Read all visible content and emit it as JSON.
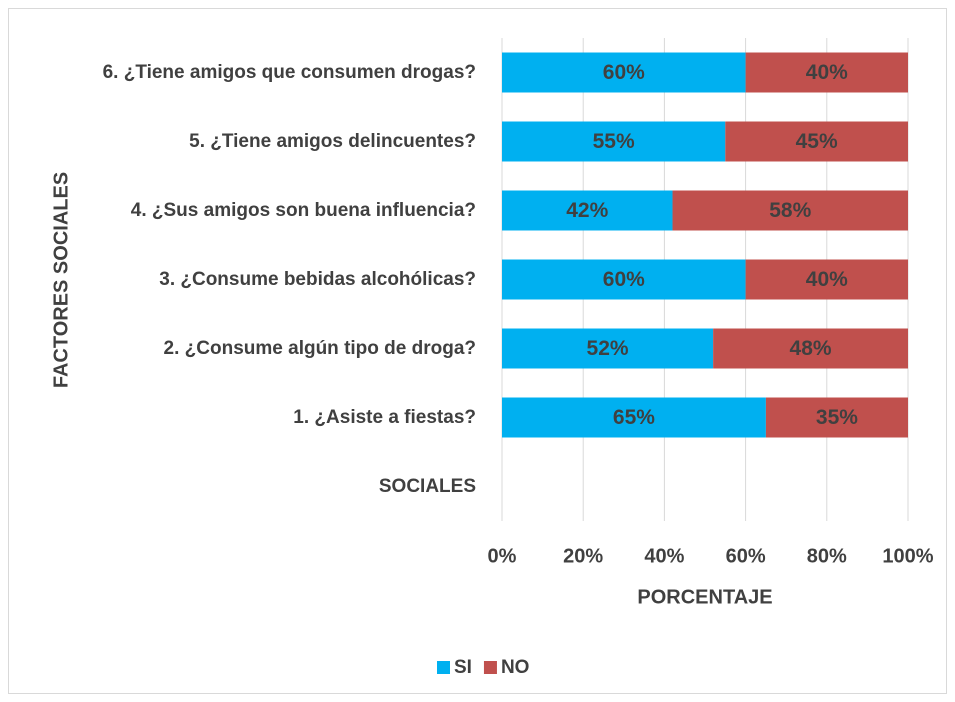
{
  "chart_data": {
    "type": "stacked_bar_horizontal",
    "y_axis_label": "FACTORES SOCIALES",
    "x_axis_label": "PORCENTAJE",
    "categories": [
      "6. ¿Tiene amigos que consumen drogas?",
      "5. ¿Tiene amigos delincuentes?",
      "4. ¿Sus amigos son buena influencia?",
      "3. ¿Consume bebidas alcohólicas?",
      "2. ¿Consume algún tipo de droga?",
      "1. ¿Asiste a fiestas?",
      "SOCIALES"
    ],
    "series": [
      {
        "name": "SI",
        "color": "#00b0f0",
        "values": [
          60,
          55,
          42,
          60,
          52,
          65,
          null
        ],
        "value_labels": [
          "60%",
          "55%",
          "42%",
          "60%",
          "52%",
          "65%",
          null
        ]
      },
      {
        "name": "NO",
        "color": "#c0504d",
        "values": [
          40,
          45,
          58,
          40,
          48,
          35,
          null
        ],
        "value_labels": [
          "40%",
          "45%",
          "58%",
          "40%",
          "48%",
          "35%",
          null
        ]
      }
    ],
    "xlim": [
      0,
      100
    ],
    "xticks": [
      {
        "value": 0,
        "label": "0%"
      },
      {
        "value": 20,
        "label": "20%"
      },
      {
        "value": 40,
        "label": "40%"
      },
      {
        "value": 60,
        "label": "60%"
      },
      {
        "value": 80,
        "label": "80%"
      },
      {
        "value": 100,
        "label": "100%"
      }
    ],
    "grid": true,
    "legend": "bottom"
  }
}
